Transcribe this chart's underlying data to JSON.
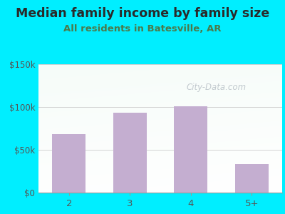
{
  "title": "Median family income by family size",
  "subtitle": "All residents in Batesville, AR",
  "categories": [
    "2",
    "3",
    "4",
    "5+"
  ],
  "values": [
    68000,
    93000,
    101000,
    33000
  ],
  "bar_color": "#c4aed0",
  "title_fontsize": 12.5,
  "subtitle_fontsize": 9.5,
  "title_color": "#2a2a2a",
  "subtitle_color": "#4a7a4a",
  "tick_label_color": "#555555",
  "background_outer": "#00eeff",
  "ylim": [
    0,
    150000
  ],
  "yticks": [
    0,
    50000,
    100000,
    150000
  ],
  "ytick_labels": [
    "$0",
    "$50k",
    "$100k",
    "$150k"
  ],
  "watermark": "City-Data.com",
  "grad_top_left": "#e8f5e9",
  "grad_bottom_right": "#ffffff"
}
